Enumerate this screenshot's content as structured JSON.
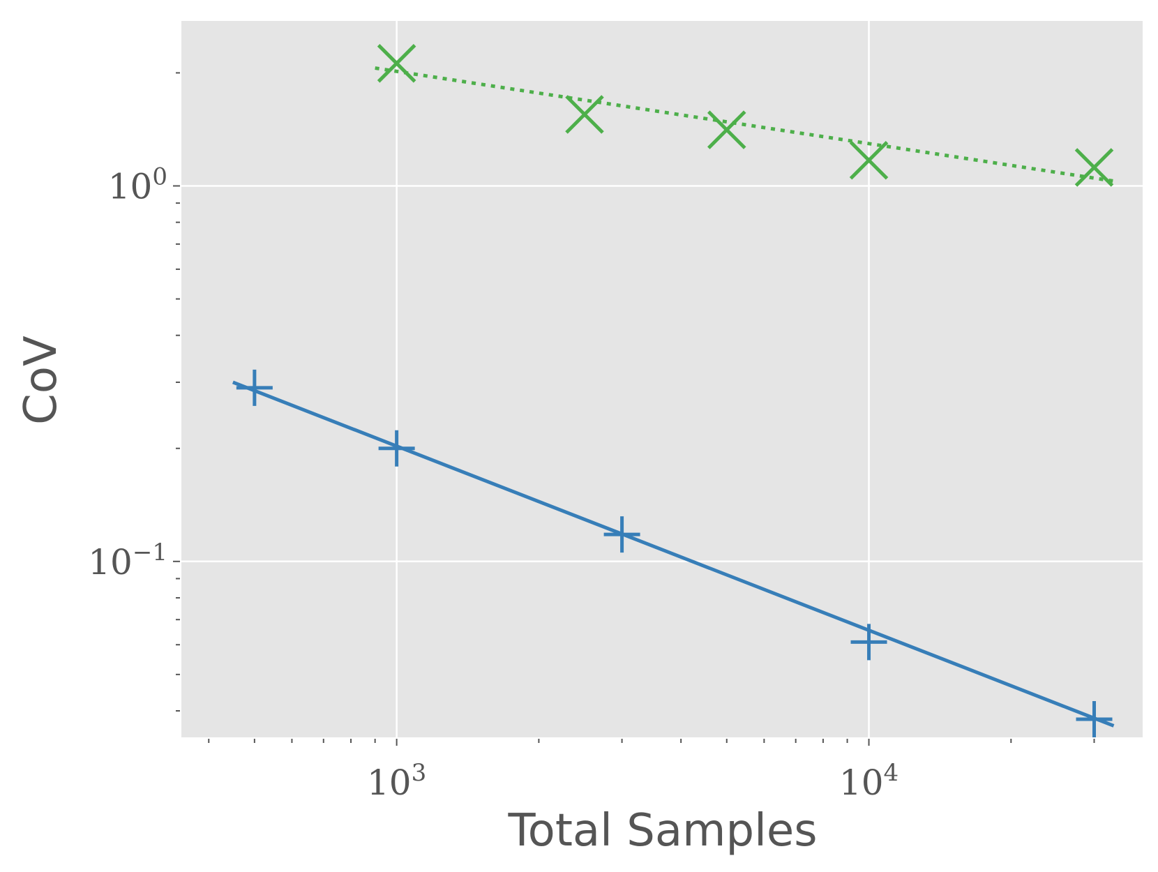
{
  "chart_data": {
    "type": "line",
    "xlabel": "Total Samples",
    "ylabel": "CoV",
    "xscale": "log",
    "yscale": "log",
    "xlim": [
      350,
      38000
    ],
    "ylim": [
      0.034,
      2.75
    ],
    "grid": true,
    "background": "#e5e5e5",
    "x_ticks": [
      {
        "value": 1000,
        "base": "10",
        "exp": "3"
      },
      {
        "value": 10000,
        "base": "10",
        "exp": "4"
      }
    ],
    "y_ticks": [
      {
        "value": 1,
        "base": "10",
        "exp": "0"
      },
      {
        "value": 0.1,
        "base": "10",
        "exp": "−1"
      }
    ],
    "series": [
      {
        "color": "#4daf4a",
        "line_style": "dotted",
        "marker": "x",
        "points": [
          {
            "x": 1000,
            "y": 2.12
          },
          {
            "x": 2500,
            "y": 1.55
          },
          {
            "x": 5000,
            "y": 1.41
          },
          {
            "x": 10000,
            "y": 1.17
          },
          {
            "x": 30000,
            "y": 1.12
          }
        ],
        "fit": {
          "x": [
            900,
            33000
          ],
          "y": [
            2.06,
            1.03
          ]
        }
      },
      {
        "color": "#377eb8",
        "line_style": "solid",
        "marker": "+",
        "points": [
          {
            "x": 500,
            "y": 0.29
          },
          {
            "x": 1000,
            "y": 0.2
          },
          {
            "x": 3000,
            "y": 0.118
          },
          {
            "x": 10000,
            "y": 0.061
          },
          {
            "x": 30000,
            "y": 0.038
          }
        ],
        "fit": {
          "x": [
            450,
            33000
          ],
          "y": [
            0.3,
            0.0365
          ]
        }
      }
    ]
  }
}
